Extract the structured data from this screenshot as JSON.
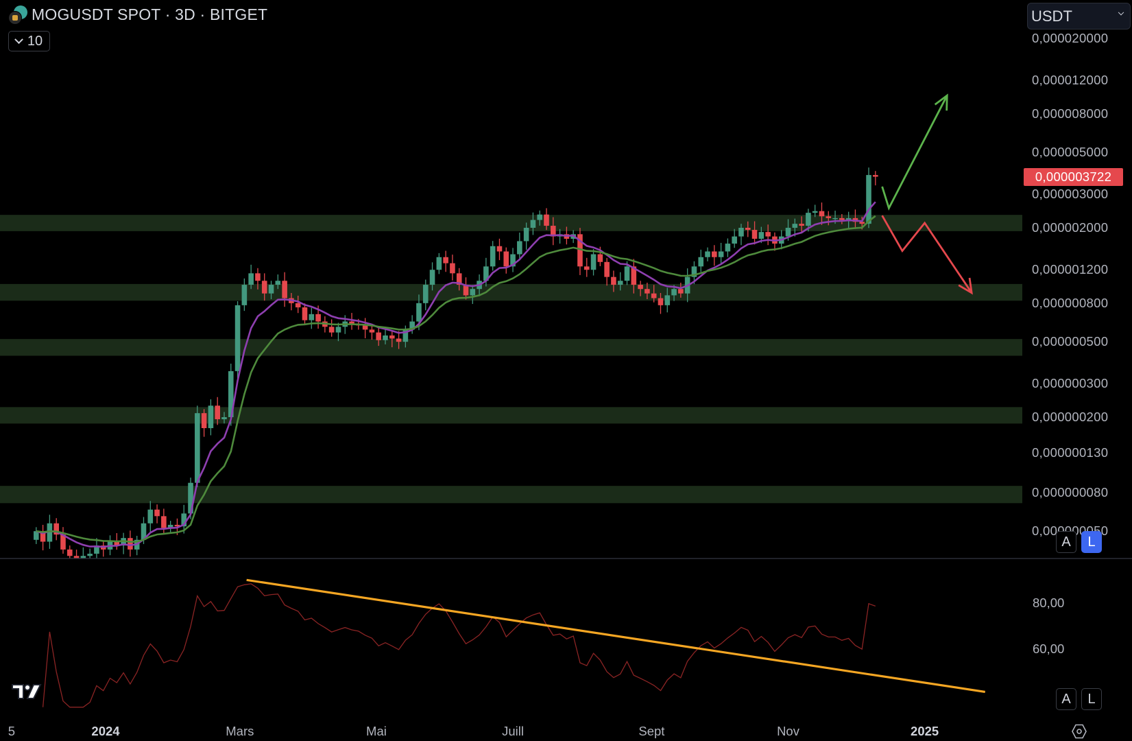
{
  "header": {
    "symbol_title": "MOGUSDT SPOT · 3D · BITGET",
    "interval_count": "10",
    "currency": "USDT"
  },
  "colors": {
    "background": "#000000",
    "candle_up": "#43997f",
    "candle_down": "#e5484d",
    "zone_fill": "#1b2c19",
    "ema_fast": "#8e3fb0",
    "ema_slow": "#4e8a3c",
    "rsi_line": "#8b2424",
    "trendline": "#f5a623",
    "arrow_up": "#5cb34c",
    "arrow_down": "#e5484d",
    "last_price_badge": "#e5484d",
    "active_button": "#3d67f0"
  },
  "icons": {
    "symbol_logo": "mog-coin-icon",
    "interval_toggle": "chevron-down-icon",
    "currency_toggle": "chevron-down-icon",
    "brand": "tradingview-logo-icon",
    "settings": "gear-icon"
  },
  "price_axis": {
    "ticks": [
      "0,000020000",
      "0,000012000",
      "0,000008000",
      "0,000005000",
      "0,000003000",
      "0,000002000",
      "0,000001200",
      "0,000000800",
      "0,000000500",
      "0,000000300",
      "0,000000200",
      "0,000000130",
      "0,000000080",
      "0,000000050"
    ],
    "last_price": "0,000003722",
    "buttons": {
      "auto": "A",
      "log": "L",
      "log_active": true
    }
  },
  "rsi_axis": {
    "ticks": [
      "80,00",
      "60,00"
    ],
    "buttons": {
      "auto": "A",
      "log": "L",
      "log_active": false
    }
  },
  "time_axis": {
    "labels": [
      {
        "text": "5",
        "date": "2023-11-20",
        "year": false
      },
      {
        "text": "2024",
        "date": "2024-01-01",
        "year": true
      },
      {
        "text": "Mars",
        "date": "2024-03-01",
        "year": false
      },
      {
        "text": "Mai",
        "date": "2024-05-01",
        "year": false
      },
      {
        "text": "Juill",
        "date": "2024-07-01",
        "year": false
      },
      {
        "text": "Sept",
        "date": "2024-09-01",
        "year": false
      },
      {
        "text": "Nov",
        "date": "2024-11-01",
        "year": false
      },
      {
        "text": "2025",
        "date": "2025-01-01",
        "year": true
      }
    ]
  },
  "chart_data": {
    "type": "candlestick",
    "scale": "log",
    "interval": "3D",
    "price_range": [
      3e-08,
      2e-05
    ],
    "candles_close": [
      [
        "2023-12-01",
        5e-08
      ],
      [
        "2023-12-04",
        4.4e-08
      ],
      [
        "2023-12-07",
        5.5e-08
      ],
      [
        "2023-12-10",
        4.8e-08
      ],
      [
        "2023-12-13",
        4e-08
      ],
      [
        "2023-12-16",
        3.7e-08
      ],
      [
        "2023-12-19",
        3.6e-08
      ],
      [
        "2023-12-22",
        3.7e-08
      ],
      [
        "2023-12-25",
        3.8e-08
      ],
      [
        "2023-12-28",
        4.2e-08
      ],
      [
        "2023-12-31",
        4e-08
      ],
      [
        "2024-01-03",
        4.4e-08
      ],
      [
        "2024-01-06",
        4.2e-08
      ],
      [
        "2024-01-09",
        4.6e-08
      ],
      [
        "2024-01-12",
        4e-08
      ],
      [
        "2024-01-15",
        4.5e-08
      ],
      [
        "2024-01-18",
        5.5e-08
      ],
      [
        "2024-01-21",
        6.5e-08
      ],
      [
        "2024-01-24",
        6e-08
      ],
      [
        "2024-01-27",
        5.2e-08
      ],
      [
        "2024-01-30",
        5.4e-08
      ],
      [
        "2024-02-02",
        5.3e-08
      ],
      [
        "2024-02-05",
        6.2e-08
      ],
      [
        "2024-02-08",
        9e-08
      ],
      [
        "2024-02-11",
        2.1e-07
      ],
      [
        "2024-02-14",
        1.75e-07
      ],
      [
        "2024-02-17",
        2.3e-07
      ],
      [
        "2024-02-20",
        1.95e-07
      ],
      [
        "2024-02-23",
        2e-07
      ],
      [
        "2024-02-26",
        3.5e-07
      ],
      [
        "2024-02-29",
        7.8e-07
      ],
      [
        "2024-03-03",
        1e-06
      ],
      [
        "2024-03-06",
        1.15e-06
      ],
      [
        "2024-03-09",
        1.05e-06
      ],
      [
        "2024-03-12",
        9e-07
      ],
      [
        "2024-03-15",
        1e-06
      ],
      [
        "2024-03-18",
        1.05e-06
      ],
      [
        "2024-03-21",
        8.5e-07
      ],
      [
        "2024-03-24",
        8e-07
      ],
      [
        "2024-03-27",
        7.6e-07
      ],
      [
        "2024-03-30",
        6.5e-07
      ],
      [
        "2024-04-02",
        7e-07
      ],
      [
        "2024-04-05",
        6.4e-07
      ],
      [
        "2024-04-08",
        6e-07
      ],
      [
        "2024-04-11",
        5.6e-07
      ],
      [
        "2024-04-14",
        6e-07
      ],
      [
        "2024-04-17",
        6.4e-07
      ],
      [
        "2024-04-20",
        6.2e-07
      ],
      [
        "2024-04-23",
        6.1e-07
      ],
      [
        "2024-04-26",
        5.8e-07
      ],
      [
        "2024-04-29",
        5.6e-07
      ],
      [
        "2024-05-02",
        5.1e-07
      ],
      [
        "2024-05-05",
        5.4e-07
      ],
      [
        "2024-05-08",
        5.2e-07
      ],
      [
        "2024-05-11",
        5e-07
      ],
      [
        "2024-05-14",
        5.8e-07
      ],
      [
        "2024-05-17",
        6.4e-07
      ],
      [
        "2024-05-20",
        8e-07
      ],
      [
        "2024-05-23",
        1e-06
      ],
      [
        "2024-05-26",
        1.2e-06
      ],
      [
        "2024-05-29",
        1.4e-06
      ],
      [
        "2024-06-01",
        1.3e-06
      ],
      [
        "2024-06-04",
        1.15e-06
      ],
      [
        "2024-06-07",
        1e-06
      ],
      [
        "2024-06-10",
        8.8e-07
      ],
      [
        "2024-06-13",
        9.5e-07
      ],
      [
        "2024-06-16",
        1.05e-06
      ],
      [
        "2024-06-19",
        1.25e-06
      ],
      [
        "2024-06-22",
        1.6e-06
      ],
      [
        "2024-06-25",
        1.5e-06
      ],
      [
        "2024-06-28",
        1.25e-06
      ],
      [
        "2024-07-01",
        1.45e-06
      ],
      [
        "2024-07-04",
        1.7e-06
      ],
      [
        "2024-07-07",
        2e-06
      ],
      [
        "2024-07-10",
        2.2e-06
      ],
      [
        "2024-07-13",
        2.35e-06
      ],
      [
        "2024-07-16",
        2.05e-06
      ],
      [
        "2024-07-19",
        1.8e-06
      ],
      [
        "2024-07-22",
        1.85e-06
      ],
      [
        "2024-07-25",
        1.75e-06
      ],
      [
        "2024-07-28",
        1.85e-06
      ],
      [
        "2024-07-31",
        1.25e-06
      ],
      [
        "2024-08-03",
        1.2e-06
      ],
      [
        "2024-08-06",
        1.45e-06
      ],
      [
        "2024-08-09",
        1.32e-06
      ],
      [
        "2024-08-12",
        1.1e-06
      ],
      [
        "2024-08-15",
        1e-06
      ],
      [
        "2024-08-18",
        1.05e-06
      ],
      [
        "2024-08-21",
        1.25e-06
      ],
      [
        "2024-08-24",
        1e-06
      ],
      [
        "2024-08-27",
        9.5e-07
      ],
      [
        "2024-08-30",
        9e-07
      ],
      [
        "2024-09-02",
        8.5e-07
      ],
      [
        "2024-09-05",
        7.8e-07
      ],
      [
        "2024-09-08",
        8.8e-07
      ],
      [
        "2024-09-11",
        9.5e-07
      ],
      [
        "2024-09-14",
        9e-07
      ],
      [
        "2024-09-17",
        1.1e-06
      ],
      [
        "2024-09-20",
        1.25e-06
      ],
      [
        "2024-09-23",
        1.4e-06
      ],
      [
        "2024-09-26",
        1.5e-06
      ],
      [
        "2024-09-29",
        1.4e-06
      ],
      [
        "2024-10-02",
        1.5e-06
      ],
      [
        "2024-10-05",
        1.65e-06
      ],
      [
        "2024-10-08",
        1.8e-06
      ],
      [
        "2024-10-11",
        2e-06
      ],
      [
        "2024-10-14",
        1.95e-06
      ],
      [
        "2024-10-17",
        1.75e-06
      ],
      [
        "2024-10-20",
        1.9e-06
      ],
      [
        "2024-10-23",
        1.8e-06
      ],
      [
        "2024-10-26",
        1.65e-06
      ],
      [
        "2024-10-29",
        1.8e-06
      ],
      [
        "2024-11-01",
        2e-06
      ],
      [
        "2024-11-04",
        2.1e-06
      ],
      [
        "2024-11-07",
        2.05e-06
      ],
      [
        "2024-11-10",
        2.4e-06
      ],
      [
        "2024-11-13",
        2.45e-06
      ],
      [
        "2024-11-16",
        2.3e-06
      ],
      [
        "2024-11-19",
        2.25e-06
      ],
      [
        "2024-11-22",
        2.25e-06
      ],
      [
        "2024-11-25",
        2.2e-06
      ],
      [
        "2024-11-28",
        2.25e-06
      ],
      [
        "2024-12-01",
        2.15e-06
      ],
      [
        "2024-12-04",
        2.1e-06
      ],
      [
        "2024-12-07",
        3.8e-06
      ],
      [
        "2024-12-10",
        3.722e-06
      ]
    ],
    "zones": [
      [
        1.92e-06,
        2.34e-06
      ],
      [
        8.24e-07,
        1.01e-06
      ],
      [
        4.22e-07,
        5.17e-07
      ],
      [
        1.85e-07,
        2.26e-07
      ],
      [
        7.03e-08,
        8.67e-08
      ]
    ],
    "arrows": [
      {
        "direction": "up",
        "points": [
          [
            "2024-12-13",
            3.3e-06
          ],
          [
            "2024-12-16",
            2.54e-06
          ],
          [
            "2025-01-11",
            9.99e-06
          ]
        ]
      },
      {
        "direction": "down",
        "points": [
          [
            "2024-12-13",
            2.32e-06
          ],
          [
            "2024-12-22",
            1.51e-06
          ],
          [
            "2025-01-01",
            2.12e-06
          ],
          [
            "2025-01-22",
            9.07e-07
          ]
        ]
      }
    ],
    "rsi": {
      "range": [
        35,
        95
      ],
      "trendline": [
        [
          "2024-03-04",
          90
        ],
        [
          "2025-01-28",
          41.6
        ]
      ]
    }
  }
}
